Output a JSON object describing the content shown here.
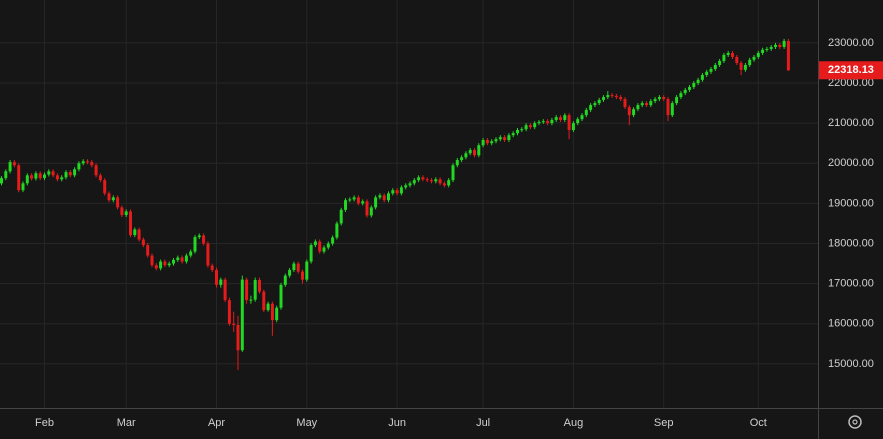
{
  "chart_data": {
    "type": "candlestick",
    "up_color": "#22d822",
    "down_color": "#e61b1b",
    "grid": true,
    "ylim": [
      13900,
      24070
    ],
    "yticks": [
      {
        "value": 15000,
        "label": "15000.00"
      },
      {
        "value": 16000,
        "label": "16000.00"
      },
      {
        "value": 17000,
        "label": "17000.00"
      },
      {
        "value": 18000,
        "label": "18000.00"
      },
      {
        "value": 19000,
        "label": "19000.00"
      },
      {
        "value": 20000,
        "label": "20000.00"
      },
      {
        "value": 21000,
        "label": "21000.00"
      },
      {
        "value": 22000,
        "label": "22000.00"
      },
      {
        "value": 23000,
        "label": "23000.00"
      }
    ],
    "categories": [
      null,
      null,
      null,
      null,
      null,
      null,
      null,
      null,
      null,
      null,
      "Feb",
      null,
      null,
      null,
      null,
      null,
      null,
      null,
      null,
      null,
      null,
      null,
      null,
      null,
      null,
      null,
      null,
      null,
      null,
      "Mar",
      null,
      null,
      null,
      null,
      null,
      null,
      null,
      null,
      null,
      null,
      null,
      null,
      null,
      null,
      null,
      null,
      null,
      null,
      null,
      null,
      "Apr",
      null,
      null,
      null,
      null,
      null,
      null,
      null,
      null,
      null,
      null,
      null,
      null,
      null,
      null,
      null,
      null,
      null,
      null,
      null,
      null,
      "May",
      null,
      null,
      null,
      null,
      null,
      null,
      null,
      null,
      null,
      null,
      null,
      null,
      null,
      null,
      null,
      null,
      null,
      null,
      null,
      null,
      "Jun",
      null,
      null,
      null,
      null,
      null,
      null,
      null,
      null,
      null,
      null,
      null,
      null,
      null,
      null,
      null,
      null,
      null,
      null,
      null,
      "Jul",
      null,
      null,
      null,
      null,
      null,
      null,
      null,
      null,
      null,
      null,
      null,
      null,
      null,
      null,
      null,
      null,
      null,
      null,
      null,
      null,
      "Aug",
      null,
      null,
      null,
      null,
      null,
      null,
      null,
      null,
      null,
      null,
      null,
      null,
      null,
      null,
      null,
      null,
      null,
      null,
      null,
      null,
      "Sep",
      null,
      null,
      null,
      null,
      null,
      null,
      null,
      null,
      null,
      null,
      null,
      null,
      null,
      null,
      null,
      null,
      null,
      null,
      null,
      null,
      null,
      "Oct",
      null,
      null,
      null,
      null,
      null,
      null,
      null
    ],
    "open": [
      19500,
      19630,
      19800,
      20030,
      19950,
      19330,
      19500,
      19700,
      19620,
      19750,
      19630,
      19720,
      19800,
      19700,
      19600,
      19650,
      19780,
      19700,
      19850,
      20000,
      20050,
      20030,
      19950,
      19700,
      19580,
      19250,
      19080,
      19150,
      18900,
      18710,
      18800,
      18210,
      18350,
      18100,
      17960,
      17700,
      17460,
      17380,
      17550,
      17460,
      17500,
      17590,
      17650,
      17550,
      17700,
      17800,
      18160,
      18200,
      18000,
      17450,
      17340,
      16970,
      17100,
      16590,
      16000,
      15970,
      15340,
      17100,
      16590,
      16600,
      17090,
      16800,
      16340,
      16500,
      16090,
      16400,
      16970,
      17200,
      17340,
      17500,
      17300,
      17100,
      17550,
      17960,
      18050,
      17800,
      17900,
      18000,
      18150,
      18500,
      18840,
      19080,
      19100,
      19150,
      19000,
      19050,
      18700,
      18900,
      19150,
      19200,
      19080,
      19250,
      19330,
      19250,
      19400,
      19450,
      19500,
      19580,
      19650,
      19600,
      19580,
      19550,
      19600,
      19500,
      19450,
      19580,
      19950,
      20080,
      20150,
      20250,
      20330,
      20200,
      20450,
      20580,
      20500,
      20550,
      20600,
      20650,
      20580,
      20700,
      20750,
      20830,
      20850,
      20950,
      20900,
      21000,
      21030,
      21050,
      21000,
      21080,
      21150,
      21080,
      21200,
      20830,
      21000,
      21100,
      21200,
      21330,
      21450,
      21500,
      21580,
      21650,
      21700,
      21680,
      21650,
      21600,
      21400,
      21200,
      21350,
      21450,
      21500,
      21450,
      21550,
      21600,
      21650,
      21600,
      21200,
      21500,
      21650,
      21750,
      21830,
      21900,
      22000,
      22080,
      22200,
      22280,
      22350,
      22450,
      22550,
      22700,
      22750,
      22650,
      22500,
      22330,
      22450,
      22580,
      22650,
      22750,
      22830,
      22850,
      22900,
      22950,
      22900,
      23050
    ],
    "high": [
      19680,
      19850,
      20080,
      20080,
      20000,
      19550,
      19750,
      19750,
      19800,
      19800,
      19770,
      19850,
      19850,
      19750,
      19700,
      19830,
      19830,
      19900,
      20050,
      20100,
      20100,
      20080,
      20000,
      19750,
      19630,
      19300,
      19200,
      19200,
      18950,
      18850,
      18850,
      18400,
      18400,
      18150,
      18010,
      17750,
      17510,
      17600,
      17600,
      17550,
      17640,
      17700,
      17700,
      17750,
      17850,
      18210,
      18250,
      18250,
      18050,
      17500,
      17400,
      17150,
      17150,
      16650,
      16300,
      16200,
      17200,
      17150,
      16700,
      17150,
      17150,
      16850,
      16550,
      16550,
      16450,
      17020,
      17250,
      17390,
      17550,
      17550,
      17350,
      17600,
      18010,
      18100,
      18100,
      17950,
      18050,
      18200,
      18550,
      18890,
      19130,
      19150,
      19200,
      19200,
      19100,
      19100,
      18950,
      19200,
      19250,
      19250,
      19300,
      19380,
      19380,
      19450,
      19500,
      19550,
      19630,
      19700,
      19700,
      19650,
      19630,
      19650,
      19650,
      19550,
      19630,
      20000,
      20130,
      20200,
      20300,
      20380,
      20380,
      20500,
      20630,
      20630,
      20600,
      20650,
      20700,
      20700,
      20750,
      20800,
      20880,
      20900,
      21000,
      21000,
      21050,
      21080,
      21100,
      21100,
      21130,
      21200,
      21200,
      21250,
      21250,
      21050,
      21150,
      21250,
      21380,
      21500,
      21550,
      21630,
      21700,
      21800,
      21750,
      21730,
      21700,
      21650,
      21450,
      21400,
      21500,
      21550,
      21550,
      21600,
      21650,
      21700,
      21700,
      21650,
      21550,
      21700,
      21800,
      21880,
      21950,
      22050,
      22130,
      22250,
      22330,
      22400,
      22500,
      22600,
      22750,
      22800,
      22800,
      22700,
      22550,
      22500,
      22630,
      22700,
      22800,
      22880,
      22900,
      22950,
      23000,
      23000,
      23100,
      23100
    ],
    "low": [
      19450,
      19580,
      19750,
      19900,
      19280,
      19280,
      19450,
      19570,
      19570,
      19580,
      19580,
      19670,
      19650,
      19550,
      19550,
      19600,
      19650,
      19650,
      19800,
      19950,
      19980,
      19900,
      19650,
      19530,
      19200,
      19030,
      19030,
      18850,
      18660,
      18660,
      18160,
      18160,
      18050,
      17910,
      17650,
      17410,
      17330,
      17330,
      17410,
      17410,
      17450,
      17540,
      17500,
      17500,
      17650,
      17750,
      18110,
      17950,
      17400,
      17290,
      16900,
      16900,
      16540,
      15950,
      15800,
      14850,
      15300,
      16500,
      16500,
      16550,
      16750,
      16290,
      16300,
      15700,
      16040,
      16350,
      16920,
      17150,
      17290,
      17250,
      17000,
      17050,
      17500,
      17910,
      17750,
      17750,
      17850,
      17950,
      18100,
      18450,
      18790,
      19030,
      19050,
      18950,
      18950,
      18650,
      18650,
      18850,
      19100,
      19030,
      19030,
      19200,
      19200,
      19200,
      19350,
      19400,
      19450,
      19530,
      19550,
      19530,
      19500,
      19500,
      19450,
      19400,
      19400,
      19530,
      19900,
      20030,
      20100,
      20200,
      20150,
      20150,
      20400,
      20450,
      20450,
      20500,
      20550,
      20530,
      20530,
      20650,
      20700,
      20780,
      20800,
      20850,
      20850,
      20950,
      20980,
      20950,
      20950,
      21030,
      21030,
      21030,
      20600,
      20780,
      20950,
      21050,
      21150,
      21280,
      21400,
      21450,
      21530,
      21600,
      21630,
      21600,
      21550,
      21350,
      20950,
      21150,
      21300,
      21400,
      21400,
      21400,
      21500,
      21550,
      21550,
      21050,
      21150,
      21450,
      21600,
      21700,
      21780,
      21850,
      21950,
      22030,
      22150,
      22230,
      22300,
      22400,
      22500,
      22650,
      22600,
      22450,
      22200,
      22280,
      22400,
      22530,
      22600,
      22700,
      22780,
      22800,
      22850,
      22850,
      22850,
      22300
    ],
    "close": [
      19630,
      19800,
      20030,
      19950,
      19330,
      19500,
      19700,
      19620,
      19750,
      19630,
      19720,
      19800,
      19700,
      19600,
      19650,
      19780,
      19700,
      19850,
      20000,
      20050,
      20030,
      19950,
      19700,
      19580,
      19250,
      19080,
      19150,
      18900,
      18710,
      18800,
      18210,
      18350,
      18100,
      17960,
      17700,
      17460,
      17380,
      17550,
      17460,
      17500,
      17590,
      17650,
      17550,
      17700,
      17800,
      18160,
      18200,
      18000,
      17450,
      17340,
      16970,
      17100,
      16590,
      16000,
      15970,
      15340,
      17100,
      16590,
      16600,
      17090,
      16800,
      16340,
      16500,
      16090,
      16400,
      16970,
      17200,
      17340,
      17500,
      17300,
      17100,
      17550,
      17960,
      18050,
      17800,
      17900,
      18000,
      18150,
      18500,
      18840,
      19080,
      19100,
      19150,
      19000,
      19050,
      18700,
      18900,
      19150,
      19200,
      19080,
      19250,
      19330,
      19250,
      19400,
      19450,
      19500,
      19580,
      19650,
      19600,
      19580,
      19550,
      19600,
      19500,
      19450,
      19580,
      19950,
      20080,
      20150,
      20250,
      20330,
      20200,
      20450,
      20580,
      20500,
      20550,
      20600,
      20650,
      20580,
      20700,
      20750,
      20830,
      20850,
      20950,
      20900,
      21000,
      21030,
      21050,
      21000,
      21080,
      21150,
      21080,
      21200,
      20830,
      21000,
      21100,
      21200,
      21330,
      21450,
      21500,
      21580,
      21650,
      21700,
      21680,
      21650,
      21600,
      21400,
      21200,
      21350,
      21450,
      21500,
      21450,
      21550,
      21600,
      21650,
      21600,
      21200,
      21500,
      21650,
      21750,
      21830,
      21900,
      22000,
      22080,
      22200,
      22280,
      22350,
      22450,
      22550,
      22700,
      22750,
      22650,
      22500,
      22330,
      22450,
      22580,
      22650,
      22750,
      22830,
      22850,
      22900,
      22950,
      22900,
      23050,
      22318.13
    ]
  }
}
